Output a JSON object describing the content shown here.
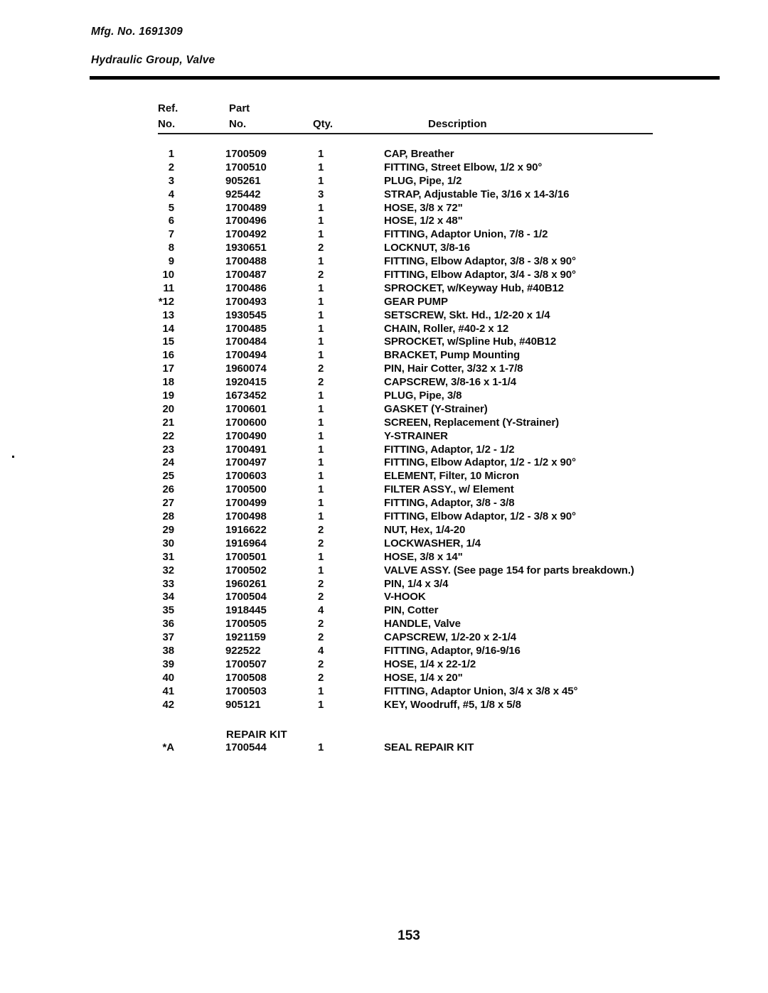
{
  "header": {
    "mfg_no": "Mfg. No. 1691309",
    "section_title": "Hydraulic Group, Valve"
  },
  "table": {
    "col_headers": {
      "ref_top": "Ref.",
      "ref_bottom": "No.",
      "part_top": "Part",
      "part_bottom": "No.",
      "qty": "Qty.",
      "description": "Description"
    },
    "rows": [
      {
        "ref": "1",
        "part": "1700509",
        "qty": "1",
        "desc": "CAP, Breather"
      },
      {
        "ref": "2",
        "part": "1700510",
        "qty": "1",
        "desc": "FITTING, Street Elbow, 1/2 x 90°"
      },
      {
        "ref": "3",
        "part": "905261",
        "qty": "1",
        "desc": "PLUG, Pipe, 1/2"
      },
      {
        "ref": "4",
        "part": "925442",
        "qty": "3",
        "desc": "STRAP, Adjustable Tie, 3/16 x 14-3/16"
      },
      {
        "ref": "5",
        "part": "1700489",
        "qty": "1",
        "desc": "HOSE, 3/8 x 72\""
      },
      {
        "ref": "6",
        "part": "1700496",
        "qty": "1",
        "desc": "HOSE, 1/2 x 48\""
      },
      {
        "ref": "7",
        "part": "1700492",
        "qty": "1",
        "desc": "FITTING, Adaptor Union, 7/8 - 1/2"
      },
      {
        "ref": "8",
        "part": "1930651",
        "qty": "2",
        "desc": "LOCKNUT, 3/8-16"
      },
      {
        "ref": "9",
        "part": "1700488",
        "qty": "1",
        "desc": "FITTING, Elbow Adaptor, 3/8 - 3/8 x 90°"
      },
      {
        "ref": "10",
        "part": "1700487",
        "qty": "2",
        "desc": "FITTING, Elbow Adaptor, 3/4 - 3/8 x 90°"
      },
      {
        "ref": "11",
        "part": "1700486",
        "qty": "1",
        "desc": "SPROCKET, w/Keyway Hub, #40B12"
      },
      {
        "ref": "*12",
        "part": "1700493",
        "qty": "1",
        "desc": "GEAR PUMP"
      },
      {
        "ref": "13",
        "part": "1930545",
        "qty": "1",
        "desc": "SETSCREW, Skt. Hd., 1/2-20 x 1/4"
      },
      {
        "ref": "14",
        "part": "1700485",
        "qty": "1",
        "desc": "CHAIN, Roller, #40-2 x 12"
      },
      {
        "ref": "15",
        "part": "1700484",
        "qty": "1",
        "desc": "SPROCKET, w/Spline Hub, #40B12"
      },
      {
        "ref": "16",
        "part": "1700494",
        "qty": "1",
        "desc": "BRACKET, Pump Mounting"
      },
      {
        "ref": "17",
        "part": "1960074",
        "qty": "2",
        "desc": "PIN, Hair Cotter, 3/32 x 1-7/8"
      },
      {
        "ref": "18",
        "part": "1920415",
        "qty": "2",
        "desc": "CAPSCREW, 3/8-16 x 1-1/4"
      },
      {
        "ref": "19",
        "part": "1673452",
        "qty": "1",
        "desc": "PLUG, Pipe, 3/8"
      },
      {
        "ref": "20",
        "part": "1700601",
        "qty": "1",
        "desc": "GASKET (Y-Strainer)"
      },
      {
        "ref": "21",
        "part": "1700600",
        "qty": "1",
        "desc": "SCREEN, Replacement (Y-Strainer)"
      },
      {
        "ref": "22",
        "part": "1700490",
        "qty": "1",
        "desc": "Y-STRAINER"
      },
      {
        "ref": "23",
        "part": "1700491",
        "qty": "1",
        "desc": "FITTING, Adaptor, 1/2 - 1/2"
      },
      {
        "ref": "24",
        "part": "1700497",
        "qty": "1",
        "desc": "FITTING, Elbow Adaptor, 1/2 - 1/2 x 90°"
      },
      {
        "ref": "25",
        "part": "1700603",
        "qty": "1",
        "desc": "ELEMENT, Filter, 10 Micron"
      },
      {
        "ref": "26",
        "part": "1700500",
        "qty": "1",
        "desc": "FILTER ASSY., w/ Element"
      },
      {
        "ref": "27",
        "part": "1700499",
        "qty": "1",
        "desc": "FITTING, Adaptor, 3/8 - 3/8"
      },
      {
        "ref": "28",
        "part": "1700498",
        "qty": "1",
        "desc": "FITTING, Elbow Adaptor, 1/2 - 3/8 x 90°"
      },
      {
        "ref": "29",
        "part": "1916622",
        "qty": "2",
        "desc": "NUT, Hex, 1/4-20"
      },
      {
        "ref": "30",
        "part": "1916964",
        "qty": "2",
        "desc": "LOCKWASHER, 1/4"
      },
      {
        "ref": "31",
        "part": "1700501",
        "qty": "1",
        "desc": "HOSE, 3/8 x 14\""
      },
      {
        "ref": "32",
        "part": "1700502",
        "qty": "1",
        "desc": "VALVE ASSY. (See page 154 for parts breakdown.)"
      },
      {
        "ref": "33",
        "part": "1960261",
        "qty": "2",
        "desc": "PIN, 1/4 x 3/4"
      },
      {
        "ref": "34",
        "part": "1700504",
        "qty": "2",
        "desc": "V-HOOK"
      },
      {
        "ref": "35",
        "part": "1918445",
        "qty": "4",
        "desc": "PIN, Cotter"
      },
      {
        "ref": "36",
        "part": "1700505",
        "qty": "2",
        "desc": "HANDLE, Valve"
      },
      {
        "ref": "37",
        "part": "1921159",
        "qty": "2",
        "desc": "CAPSCREW, 1/2-20 x 2-1/4"
      },
      {
        "ref": "38",
        "part": "922522",
        "qty": "4",
        "desc": "FITTING, Adaptor, 9/16-9/16"
      },
      {
        "ref": "39",
        "part": "1700507",
        "qty": "2",
        "desc": "HOSE, 1/4 x 22-1/2"
      },
      {
        "ref": "40",
        "part": "1700508",
        "qty": "2",
        "desc": "HOSE, 1/4 x 20\""
      },
      {
        "ref": "41",
        "part": "1700503",
        "qty": "1",
        "desc": "FITTING, Adaptor Union, 3/4 x 3/8 x 45°"
      },
      {
        "ref": "42",
        "part": "905121",
        "qty": "1",
        "desc": "KEY, Woodruff, #5, 1/8 x 5/8"
      }
    ],
    "repair_kit": {
      "heading": "REPAIR KIT",
      "rows": [
        {
          "ref": "*A",
          "part": "1700544",
          "qty": "1",
          "desc": "SEAL REPAIR KIT"
        }
      ]
    }
  },
  "footer": {
    "page_number": "153"
  }
}
